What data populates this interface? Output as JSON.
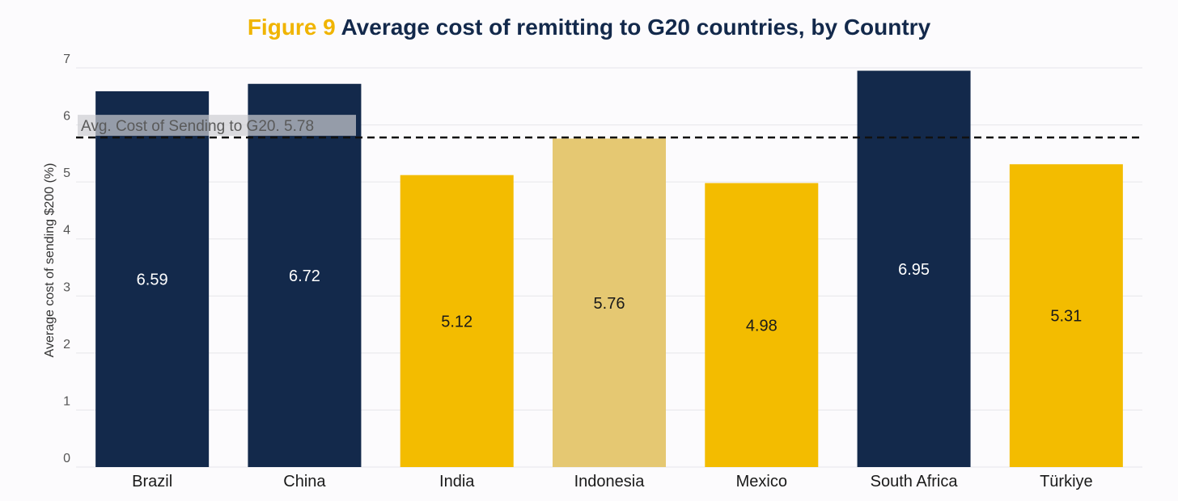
{
  "chart_data": {
    "type": "bar",
    "title_prefix": "Figure 9",
    "title": "Average cost of remitting to G20 countries, by Country",
    "xlabel": "",
    "ylabel": "Average cost of sending $200 (%)",
    "ylim": [
      0,
      7
    ],
    "yticks": [
      "0",
      "1",
      "2",
      "3",
      "4",
      "5",
      "6",
      "7"
    ],
    "categories": [
      "Brazil",
      "China",
      "India",
      "Indonesia",
      "Mexico",
      "South Africa",
      "Türkiye"
    ],
    "values": [
      6.59,
      6.72,
      5.12,
      5.76,
      4.98,
      6.95,
      5.31
    ],
    "value_labels": [
      "6.59",
      "6.72",
      "5.12",
      "5.76",
      "4.98",
      "6.95",
      "5.31"
    ],
    "colors": [
      "#13294b",
      "#13294b",
      "#f3bc00",
      "#e5c872",
      "#f3bc00",
      "#13294b",
      "#f3bc00"
    ],
    "label_colors": [
      "#ffffff",
      "#ffffff",
      "#1a1a1a",
      "#1a1a1a",
      "#1a1a1a",
      "#ffffff",
      "#1a1a1a"
    ],
    "grid": true,
    "reference_line": {
      "value": 5.78,
      "label": "Avg. Cost of Sending to G20. 5.78",
      "style": "dashed"
    }
  }
}
